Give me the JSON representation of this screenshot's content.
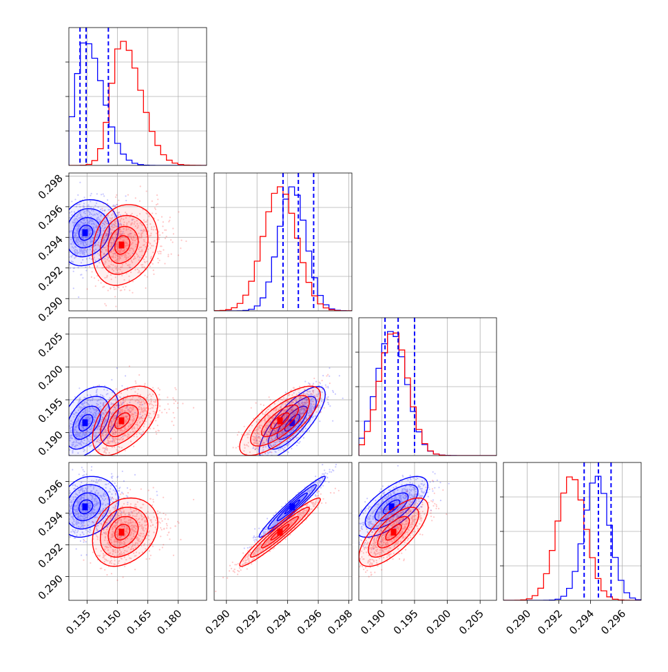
{
  "chart_data": {
    "type": "corner",
    "colors": {
      "blue": "#0000ff",
      "red": "#ff0000",
      "grid": "#b0b0b0"
    },
    "grid": true,
    "series": [
      {
        "color": "#0000ff",
        "centers": [
          0.134,
          0.2943,
          0.1915,
          0.2944
        ],
        "sigmas": [
          0.0048,
          0.0009,
          0.0023,
          0.0008
        ],
        "corr": {
          "1-0": 0.15,
          "2-0": 0.45,
          "2-1": 0.78,
          "3-0": 0.2,
          "3-1": 0.97,
          "3-2": 0.7
        }
      },
      {
        "color": "#ff0000",
        "centers": [
          0.152,
          0.2935,
          0.1918,
          0.2928
        ],
        "sigmas": [
          0.0052,
          0.0011,
          0.0022,
          0.0009
        ],
        "corr": {
          "1-0": 0.2,
          "2-0": 0.5,
          "2-1": 0.75,
          "3-0": 0.25,
          "3-1": 0.96,
          "3-2": 0.72
        }
      }
    ],
    "quantiles": [
      [
        0.1315,
        0.1345,
        0.1455
      ],
      [
        0.2937,
        0.2947,
        0.2957
      ],
      [
        0.1905,
        0.1925,
        0.195
      ],
      [
        0.2936,
        0.2945,
        0.2953
      ]
    ],
    "axes": [
      {
        "range": [
          0.126,
          0.194
        ],
        "ticks": [
          0.135,
          0.15,
          0.165,
          0.18
        ],
        "tick_labels": [
          "0.135",
          "0.150",
          "0.165",
          "0.180"
        ]
      },
      {
        "range": [
          0.2892,
          0.2982
        ],
        "ticks": [
          0.29,
          0.292,
          0.294,
          0.296,
          0.298
        ],
        "tick_labels": [
          "0.290",
          "0.292",
          "0.294",
          "0.296",
          "0.298"
        ]
      },
      {
        "range": [
          0.1865,
          0.2075
        ],
        "ticks": [
          0.19,
          0.195,
          0.2,
          0.205
        ],
        "tick_labels": [
          "0.190",
          "0.195",
          "0.200",
          "0.205"
        ]
      },
      {
        "range": [
          0.2885,
          0.2972
        ],
        "ticks": [
          0.29,
          0.292,
          0.294,
          0.296
        ],
        "tick_labels": [
          "0.290",
          "0.292",
          "0.294",
          "0.296"
        ]
      }
    ],
    "row_axes": [
      {
        "range": [
          0.2892,
          0.2982
        ],
        "ticks": [
          0.29,
          0.292,
          0.294,
          0.296,
          0.298
        ],
        "tick_labels": [
          "0.290",
          "0.292",
          "0.294",
          "0.296",
          "0.298"
        ]
      },
      {
        "range": [
          0.1865,
          0.2075
        ],
        "ticks": [
          0.19,
          0.195,
          0.2,
          0.205
        ],
        "tick_labels": [
          "0.190",
          "0.195",
          "0.200",
          "0.205"
        ]
      },
      {
        "range": [
          0.2885,
          0.2972
        ],
        "ticks": [
          0.29,
          0.292,
          0.294,
          0.296
        ],
        "tick_labels": [
          "0.290",
          "0.292",
          "0.294",
          "0.296"
        ]
      }
    ]
  }
}
